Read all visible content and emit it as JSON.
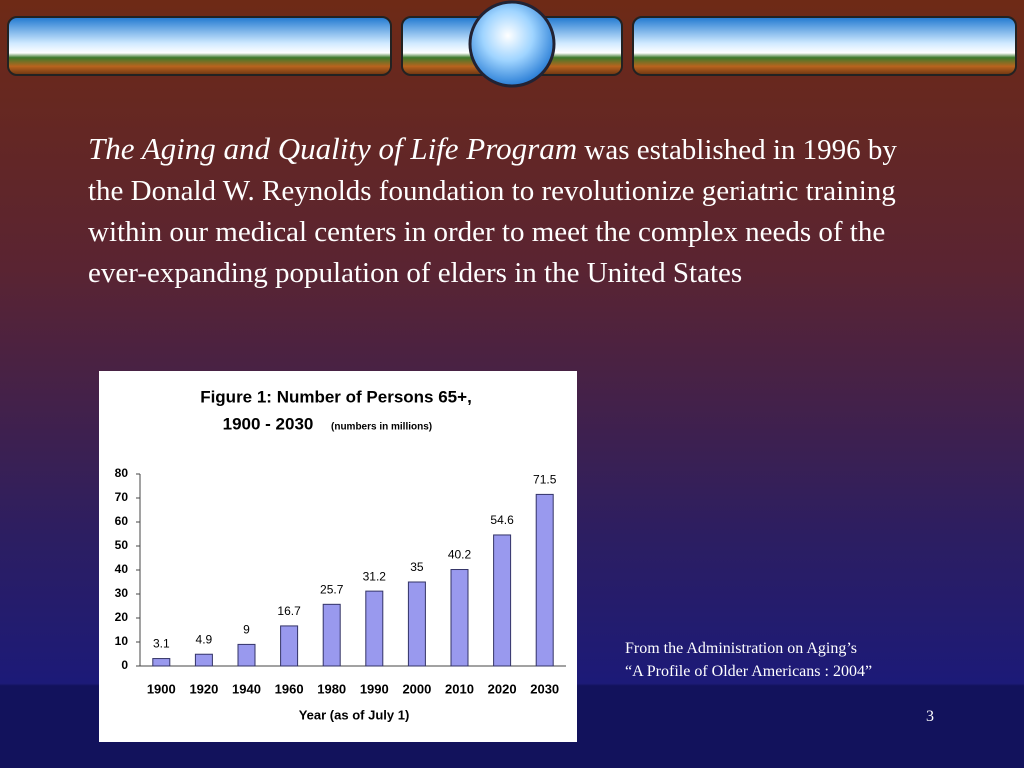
{
  "slide": {
    "intro_italic": "The Aging and Quality of Life Program",
    "intro_text": "was established in 1996 by the Donald W. Reynolds foundation to revolutionize geriatric training within our medical centers in order to meet the complex needs of the ever-expanding population of elders in the United States",
    "source": [
      "From the Administration on Aging’s",
      "“A Profile of Older Americans : 2004”"
    ],
    "page_number": "3"
  },
  "chart_data": {
    "type": "bar",
    "title": [
      "Figure 1: Number of Persons 65+,",
      "1900 - 2030"
    ],
    "subtitle": "(numbers in millions)",
    "x_label": "Year (as of July 1)",
    "categories": [
      "1900",
      "1920",
      "1940",
      "1960",
      "1980",
      "1990",
      "2000",
      "2010",
      "2020",
      "2030"
    ],
    "values": [
      3.1,
      4.9,
      9,
      16.7,
      25.7,
      31.2,
      35,
      40.2,
      54.6,
      71.5
    ],
    "color": "#9999ee",
    "ylim": [
      0,
      80
    ],
    "yticks": [
      0,
      10,
      20,
      30,
      40,
      50,
      60,
      70,
      80
    ]
  }
}
